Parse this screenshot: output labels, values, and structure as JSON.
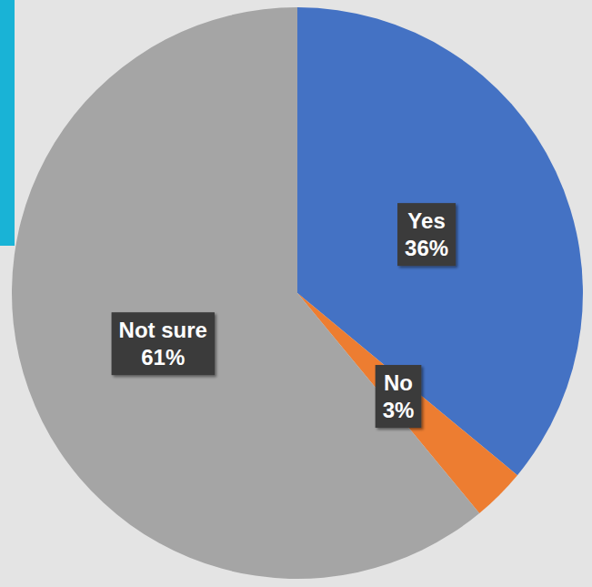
{
  "chart_data": {
    "type": "pie",
    "categories": [
      "Yes",
      "No",
      "Not sure"
    ],
    "values": [
      36,
      3,
      61
    ],
    "value_labels": [
      "36%",
      "3%",
      "61%"
    ],
    "colors": [
      "#4472c4",
      "#ed7d31",
      "#a5a5a5"
    ],
    "data_labels": true
  }
}
